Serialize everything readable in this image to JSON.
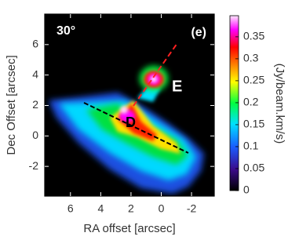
{
  "chart_data": {
    "type": "image",
    "panel_label": "(e)",
    "angle_label": "30°",
    "annotations": [
      "E",
      "D"
    ],
    "xlabel": "RA offset [arcsec]",
    "ylabel": "Dec Offset [arcsec]",
    "xlim": [
      7.7,
      -3.5
    ],
    "xticks": [
      6,
      4,
      2,
      0,
      -2
    ],
    "ylim": [
      -3.95,
      8.0
    ],
    "yticks": [
      -2,
      0,
      2,
      4,
      6
    ],
    "colorbar": {
      "label": "(Jy/beam.km/s)",
      "lim": [
        0,
        0.398
      ],
      "ticks": [
        0,
        0.05,
        0.1,
        0.15,
        0.2,
        0.25,
        0.3,
        0.35
      ]
    }
  }
}
